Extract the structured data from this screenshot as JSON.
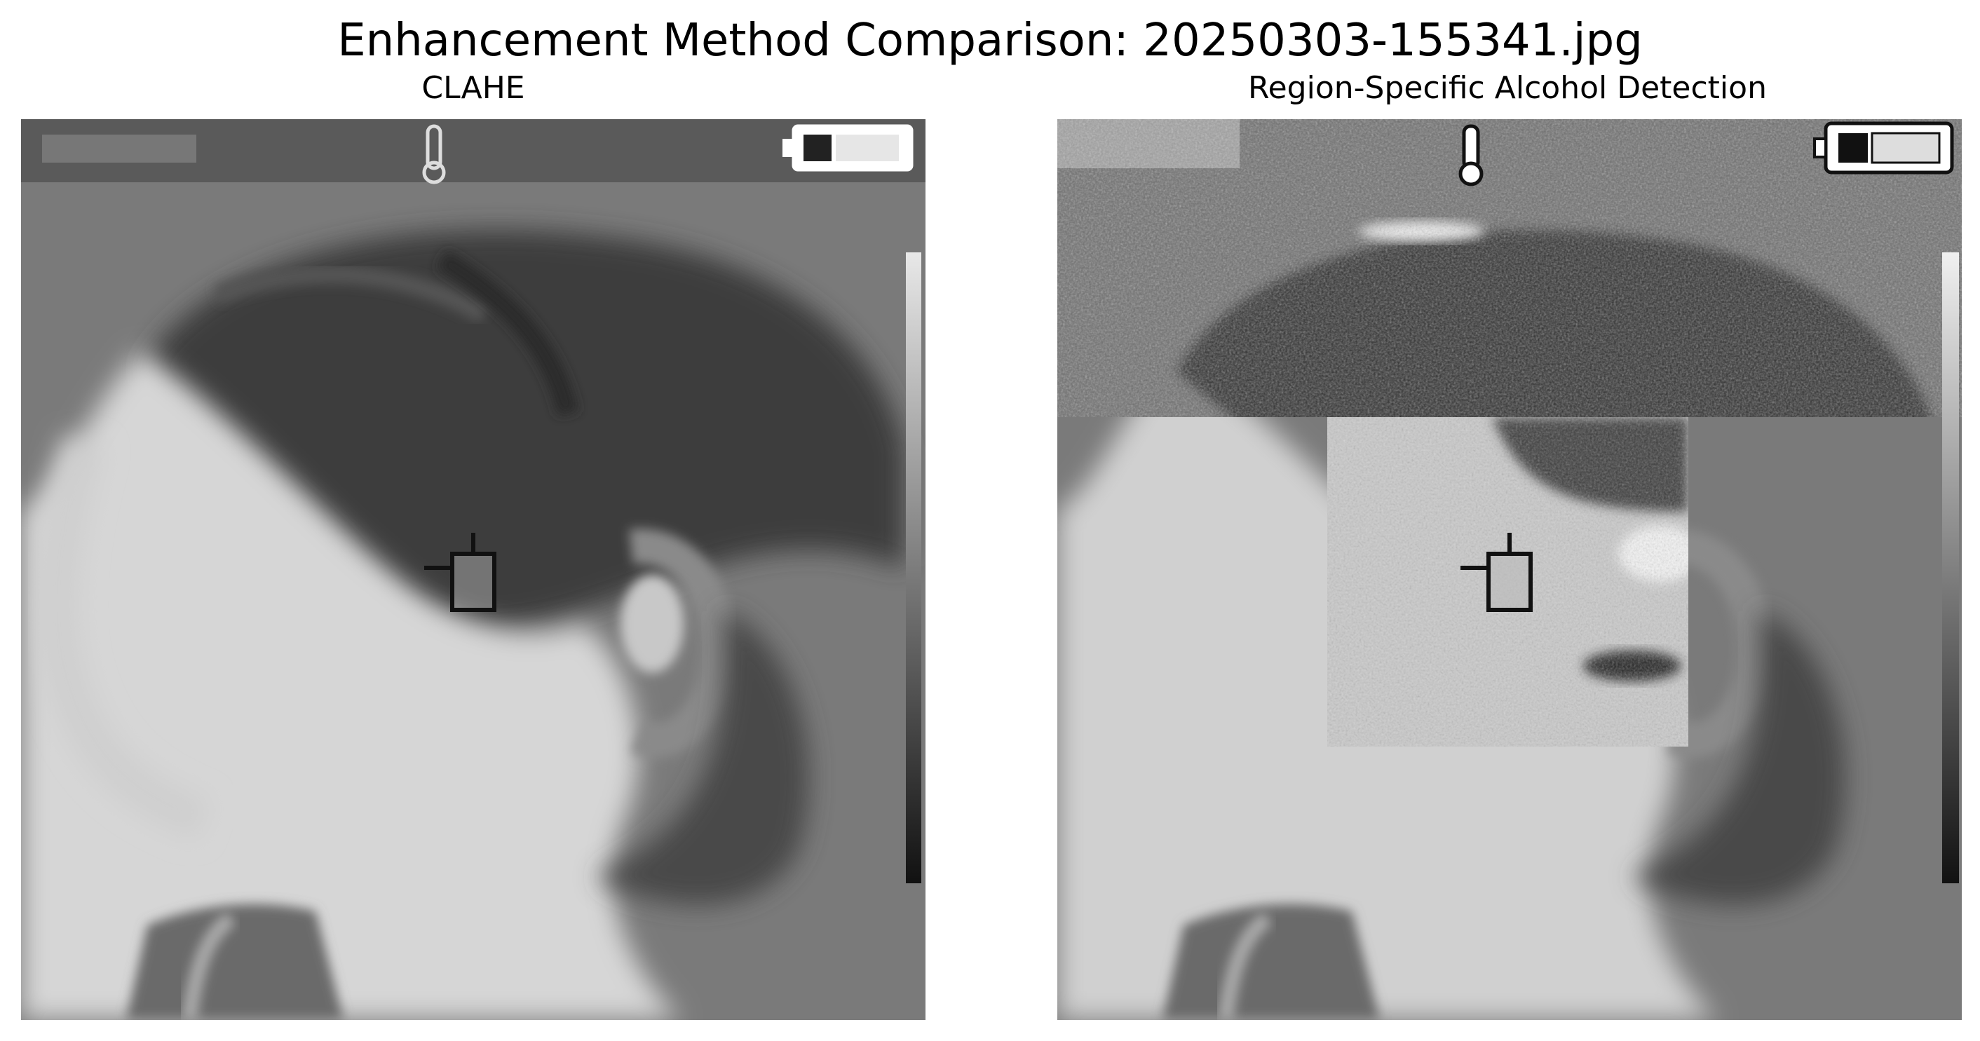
{
  "figure": {
    "title": "Enhancement Method Comparison: 20250303-155341.jpg"
  },
  "panels": [
    {
      "title": "CLAHE",
      "image_description_icon": "thermal-face-profile-image",
      "variant": "smooth"
    },
    {
      "title": "Region-Specific Alcohol Detection",
      "image_description_icon": "thermal-face-profile-image",
      "variant": "region-enhanced"
    }
  ]
}
